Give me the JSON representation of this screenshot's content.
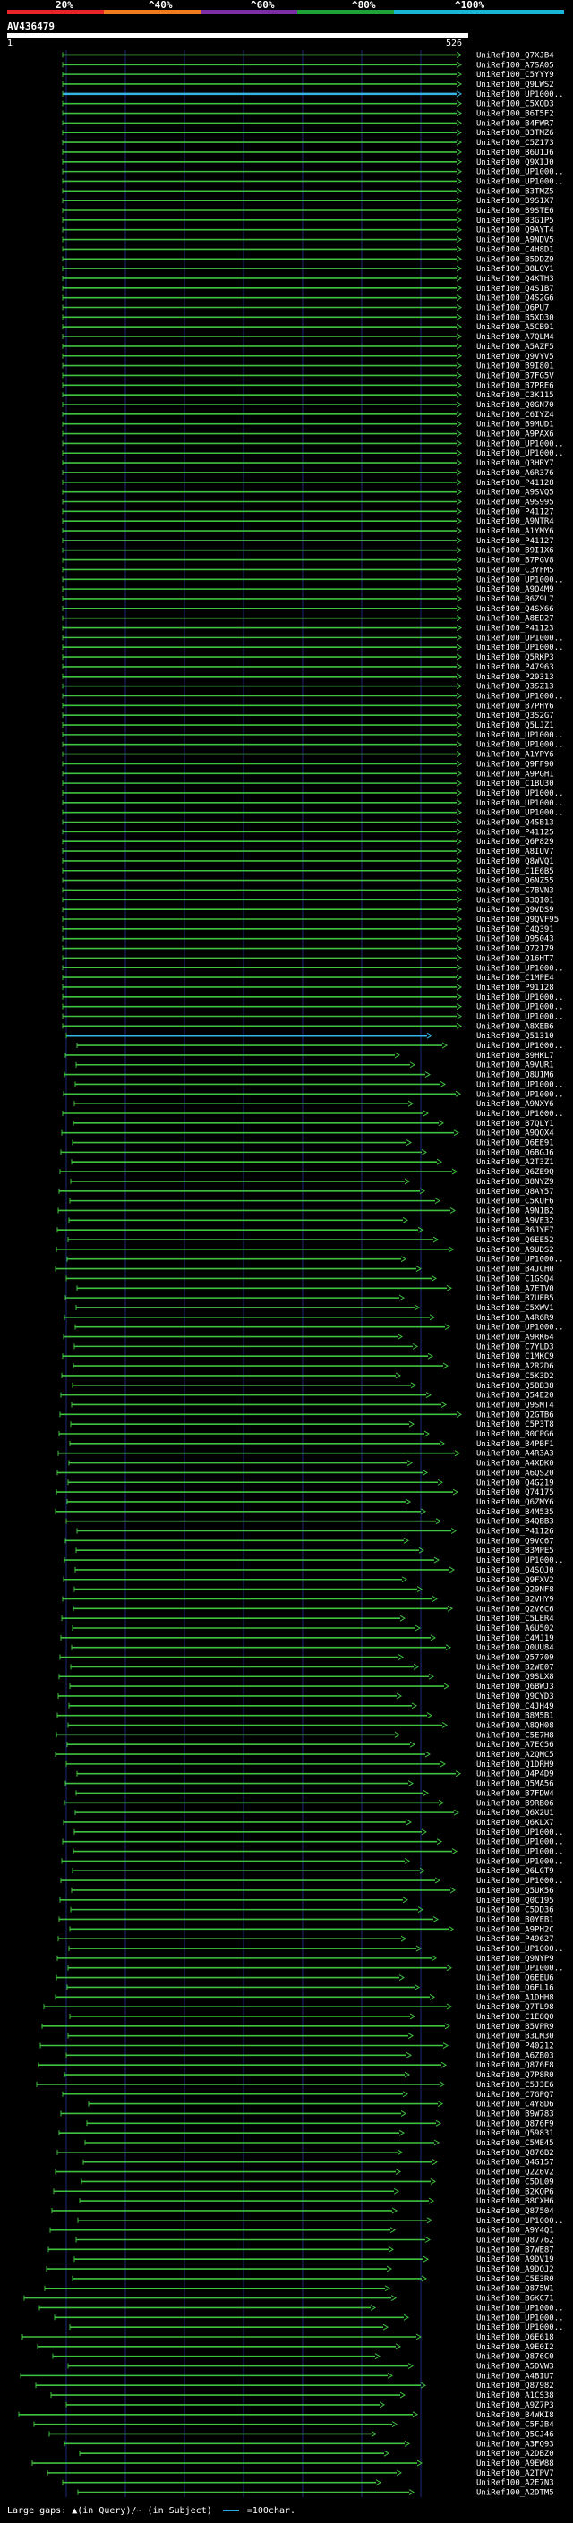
{
  "scale": {
    "labels": [
      "20%",
      "^40%",
      "^60%",
      "^80%",
      "^100%"
    ],
    "colors": [
      "#e8232a",
      "#f07c1d",
      "#7a2fa5",
      "#1ea33a",
      "#19b7d6"
    ]
  },
  "query": {
    "title": "AV436479",
    "ruler_start": "1",
    "ruler_end": "526"
  },
  "colors": {
    "hit_line": "#3fc23f",
    "highlight_line": "#35b5e5",
    "grid": "#1d2a7a",
    "dark_gap": "#111"
  },
  "hits": [
    "UniRef100_Q7XJB4",
    "UniRef100_A7SA05",
    "UniRef100_C5YYY9",
    "UniRef100_Q9LWS2",
    "UniRef100_UP1000..",
    "UniRef100_C5XQD3",
    "UniRef100_B6T5F2",
    "UniRef100_B4FWR7",
    "UniRef100_B3TMZ6",
    "UniRef100_C5Z173",
    "UniRef100_B6U1J6",
    "UniRef100_Q9XIJ0",
    "UniRef100_UP1000..",
    "UniRef100_UP1000..",
    "UniRef100_B3TMZ5",
    "UniRef100_B9S1X7",
    "UniRef100_B9STE6",
    "UniRef100_B3G1P5",
    "UniRef100_Q9AYT4",
    "UniRef100_A9NDV5",
    "UniRef100_C4H8D1",
    "UniRef100_B5DDZ9",
    "UniRef100_B8LQY1",
    "UniRef100_Q4KTH3",
    "UniRef100_Q4S1B7",
    "UniRef100_Q4S2G6",
    "UniRef100_Q6PU7",
    "UniRef100_B5XD30",
    "UniRef100_A5CB91",
    "UniRef100_A7QLM4",
    "UniRef100_A5AZF5",
    "UniRef100_Q9VYV5",
    "UniRef100_B9I801",
    "UniRef100_B7FG5V",
    "UniRef100_B7PRE6",
    "UniRef100_C3K115",
    "UniRef100_Q0GN70",
    "UniRef100_C6IYZ4",
    "UniRef100_B9MUD1",
    "UniRef100_A9PAX6",
    "UniRef100_UP1000..",
    "UniRef100_UP1000..",
    "UniRef100_Q3HRY7",
    "UniRef100_A6R376",
    "UniRef100_P41128",
    "UniRef100_A9SVQ5",
    "UniRef100_A9S995",
    "UniRef100_P41127",
    "UniRef100_A9NTR4",
    "UniRef100_A1YMY6",
    "UniRef100_P41127",
    "UniRef100_B9I1X6",
    "UniRef100_B7PGV8",
    "UniRef100_C3YFM5",
    "UniRef100_UP1000..",
    "UniRef100_A9Q4M9",
    "UniRef100_B6Z9L7",
    "UniRef100_Q4SX66",
    "UniRef100_A8ED27",
    "UniRef100_P41123",
    "UniRef100_UP1000..",
    "UniRef100_UP1000..",
    "UniRef100_Q5RKP3",
    "UniRef100_P47963",
    "UniRef100_P29313",
    "UniRef100_Q3SZ13",
    "UniRef100_UP1000..",
    "UniRef100_B7PHY6",
    "UniRef100_Q3S2G7",
    "UniRef100_Q5LJZ1",
    "UniRef100_UP1000..",
    "UniRef100_UP1000..",
    "UniRef100_A1YPY6",
    "UniRef100_Q9FF90",
    "UniRef100_A9PGH1",
    "UniRef100_C1BU30",
    "UniRef100_UP1000..",
    "UniRef100_UP1000..",
    "UniRef100_UP1000..",
    "UniRef100_Q4SB13",
    "UniRef100_P41125",
    "UniRef100_Q6P829",
    "UniRef100_A8IUV7",
    "UniRef100_Q8WVQ1",
    "UniRef100_C1E6B5",
    "UniRef100_Q6NZ55",
    "UniRef100_C7BVN3",
    "UniRef100_B3QI01",
    "UniRef100_Q9VDS9",
    "UniRef100_Q9QVF95",
    "UniRef100_C4Q391",
    "UniRef100_Q95043",
    "UniRef100_Q72179",
    "UniRef100_Q16HT7",
    "UniRef100_UP1000..",
    "UniRef100_C1MPE4",
    "UniRef100_P91128",
    "UniRef100_UP1000..",
    "UniRef100_UP1000..",
    "UniRef100_UP1000..",
    "UniRef100_A8XEB6",
    "UniRef100_Q51310",
    "UniRef100_UP1000..",
    "UniRef100_B9HKL7",
    "UniRef100_A9VUR1",
    "UniRef100_Q8U1M6",
    "UniRef100_UP1000..",
    "UniRef100_UP1000..",
    "UniRef100_A9NXY6",
    "UniRef100_UP1000..",
    "UniRef100_B7QLY1",
    "UniRef100_A9QQX4",
    "UniRef100_Q6EE91",
    "UniRef100_Q6BGJ6",
    "UniRef100_A2T3Z1",
    "UniRef100_Q6ZE9Q",
    "UniRef100_B8NYZ9",
    "UniRef100_Q8AY57",
    "UniRef100_C5KUF6",
    "UniRef100_A9N1B2",
    "UniRef100_A9VE32",
    "UniRef100_B6JYE7",
    "UniRef100_Q6EE52",
    "UniRef100_A9UDS2",
    "UniRef100_UP1000..",
    "UniRef100_B4JCH0",
    "UniRef100_C1GSQ4",
    "UniRef100_A7ETV0",
    "UniRef100_B7UEB5",
    "UniRef100_C5XWV1",
    "UniRef100_A4R6R9",
    "UniRef100_UP1000..",
    "UniRef100_A9RK64",
    "UniRef100_C7YLD3",
    "UniRef100_C1MKC9",
    "UniRef100_A2R2D6",
    "UniRef100_C5K3D2",
    "UniRef100_Q5BB38",
    "UniRef100_Q54E20",
    "UniRef100_Q9SMT4",
    "UniRef100_Q2GTB6",
    "UniRef100_C5P3T8",
    "UniRef100_B0CPG6",
    "UniRef100_B4PBF1",
    "UniRef100_A4R3A3",
    "UniRef100_A4XDK0",
    "UniRef100_A6QS20",
    "UniRef100_Q4G219",
    "UniRef100_Q74175",
    "UniRef100_Q6ZMY6",
    "UniRef100_B4M535",
    "UniRef100_B4QBB3",
    "UniRef100_P41126",
    "UniRef100_Q9VC67",
    "UniRef100_B3MPE5",
    "UniRef100_UP1000..",
    "UniRef100_Q4SQJ0",
    "UniRef100_Q9FXV2",
    "UniRef100_Q29NF8",
    "UniRef100_B2VHY9",
    "UniRef100_Q2V6C6",
    "UniRef100_C5LER4",
    "UniRef100_A6U502",
    "UniRef100_C4MJ19",
    "UniRef100_Q0UU84",
    "UniRef100_Q57709",
    "UniRef100_B2WE07",
    "UniRef100_Q9SLX8",
    "UniRef100_Q6BWJ3",
    "UniRef100_Q9CYD3",
    "UniRef100_C4JH49",
    "UniRef100_B8M5B1",
    "UniRef100_A8QH08",
    "UniRef100_C5E7H8",
    "UniRef100_A7EC56",
    "UniRef100_A2QMC5",
    "UniRef100_Q1DRH9",
    "UniRef100_Q4P4D9",
    "UniRef100_Q5MA56",
    "UniRef100_B7FDW4",
    "UniRef100_B9RB06",
    "UniRef100_Q6X2U1",
    "UniRef100_Q6KLX7",
    "UniRef100_UP1000..",
    "UniRef100_UP1000..",
    "UniRef100_UP1000..",
    "UniRef100_UP1000..",
    "UniRef100_Q6LGT9",
    "UniRef100_UP1000..",
    "UniRef100_Q5UK56",
    "UniRef100_Q0C195",
    "UniRef100_C5DD36",
    "UniRef100_B0YEB1",
    "UniRef100_A9PH2C",
    "UniRef100_P49627",
    "UniRef100_UP1000..",
    "UniRef100_Q9NYP9",
    "UniRef100_UP1000..",
    "UniRef100_Q6EEU6",
    "UniRef100_Q6FL16",
    "UniRef100_A1DHH8",
    "UniRef100_Q7TL98",
    "UniRef100_C1E8Q0",
    "UniRef100_B5VPR9",
    "UniRef100_B3LM30",
    "UniRef100_P40212",
    "UniRef100_A6ZB03",
    "UniRef100_Q876F8",
    "UniRef100_Q7P8R0",
    "UniRef100_C5J3E6",
    "UniRef100_C7GPQ7",
    "UniRef100_C4Y8D6",
    "UniRef100_B9W783",
    "UniRef100_Q876F9",
    "UniRef100_Q59831",
    "UniRef100_C5ME45",
    "UniRef100_Q876B2",
    "UniRef100_Q4G157",
    "UniRef100_Q2Z6V2",
    "UniRef100_C5DL09",
    "UniRef100_B2KQP6",
    "UniRef100_B8CXH6",
    "UniRef100_Q87504",
    "UniRef100_UP1000..",
    "UniRef100_A9Y4Q1",
    "UniRef100_Q87762",
    "UniRef100_B7WE87",
    "UniRef100_A9DV19",
    "UniRef100_A9DQJ2",
    "UniRef100_C5E3R0",
    "UniRef100_Q875W1",
    "UniRef100_B6KC71",
    "UniRef100_UP1000..",
    "UniRef100_UP1000..",
    "UniRef100_UP1000..",
    "UniRef100_Q6E618",
    "UniRef100_A9E0I2",
    "UniRef100_Q876C0",
    "UniRef100_A5DVW3",
    "UniRef100_A4BIU7",
    "UniRef100_Q87982",
    "UniRef100_A1CS38",
    "UniRef100_A9Z7P3",
    "UniRef100_B4WKI8",
    "UniRef100_C5FJB4",
    "UniRef100_Q5CJ46",
    "UniRef100_A3FQ93",
    "UniRef100_A2DBZ0",
    "UniRef100_A9EW88",
    "UniRef100_A2TPV7",
    "UniRef100_A2E7N3",
    "UniRef100_A2DTM5"
  ],
  "footer": {
    "text": "Large gaps: ▲(in Query)/~ (in Subject)",
    "legend_label": "=100char."
  }
}
